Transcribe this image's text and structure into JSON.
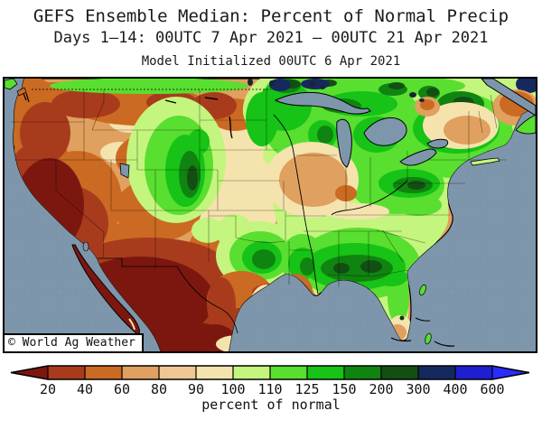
{
  "title": {
    "line1": "GEFS Ensemble Median: Percent of Normal Precip",
    "line2": "Days 1–14: 00UTC 7 Apr 2021 – 00UTC 21 Apr 2021",
    "line3": "Model Initialized 00UTC 6 Apr 2021"
  },
  "map": {
    "watermark": "© World Ag Weather",
    "ocean_color": "#7E96AB",
    "coastline_color": "#000000"
  },
  "chart_data": {
    "type": "map",
    "title": "GEFS Ensemble Median: Percent of Normal Precip",
    "valid_period": "Days 1–14: 00UTC 7 Apr 2021 – 00UTC 21 Apr 2021",
    "initialized": "00UTC 6 Apr 2021",
    "units": "percent of normal",
    "scale_boundaries": [
      20,
      40,
      60,
      80,
      90,
      100,
      110,
      125,
      150,
      200,
      300,
      400,
      600
    ],
    "regions": [
      {
        "name": "california-nevada-southwest-mexico",
        "value": "below 20-40"
      },
      {
        "name": "pacific-northwest-rockies",
        "value": "40-60"
      },
      {
        "name": "montana-wyoming-colorado-plateau",
        "value": "40-90"
      },
      {
        "name": "front-range-plains-band",
        "value": "110-200"
      },
      {
        "name": "oklahoma-north-texas-blob",
        "value": "110-200"
      },
      {
        "name": "south-texas-gulf-coast",
        "value": "20-60"
      },
      {
        "name": "missouri-illinois-indiana-dry-band",
        "value": "60-90"
      },
      {
        "name": "upper-midwest-great-lakes",
        "value": "125-300"
      },
      {
        "name": "ohio-valley-northeast-interior",
        "value": "125-300"
      },
      {
        "name": "southeast-alabama-georgia",
        "value": "150-300"
      },
      {
        "name": "maine-coastal-new-england",
        "value": "40-80"
      },
      {
        "name": "canada-top-band",
        "value": "150-600"
      },
      {
        "name": "florida",
        "value": "100-150, tip 60-80"
      }
    ]
  },
  "colorbar": {
    "labels": [
      "20",
      "40",
      "60",
      "80",
      "90",
      "100",
      "110",
      "125",
      "150",
      "200",
      "300",
      "400",
      "600"
    ],
    "caption": "percent of normal",
    "colors": [
      "#7C1710",
      "#A93B1D",
      "#CB6A22",
      "#E0A05F",
      "#EFC792",
      "#F5E3AE",
      "#C4F57E",
      "#59DF2F",
      "#16C316",
      "#108410",
      "#134F13",
      "#16295E",
      "#1F1FD2",
      "#2B2BFF"
    ],
    "outline_color": "#000000"
  }
}
